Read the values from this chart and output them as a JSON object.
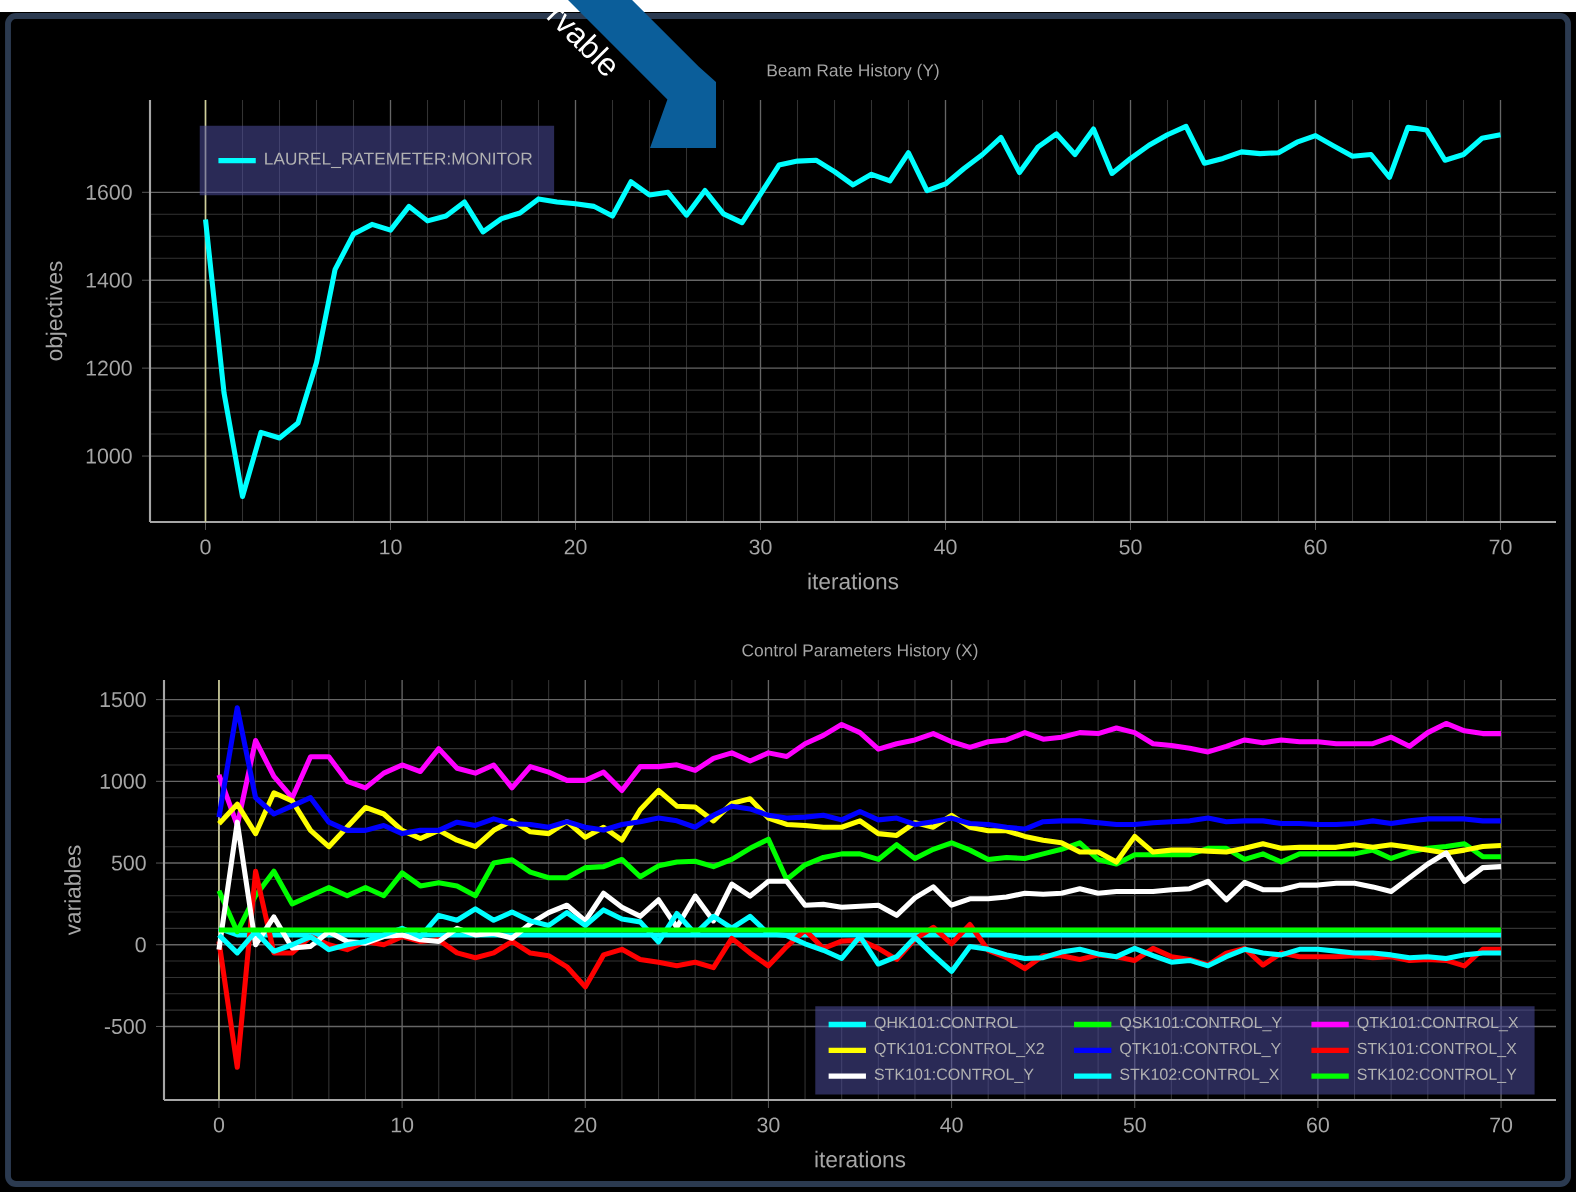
{
  "chart_data": [
    {
      "type": "line",
      "title": "Beam Rate History (Y)",
      "xlabel": "iterations",
      "ylabel": "objectives",
      "annotations": [
        "rvable"
      ],
      "x": [
        0,
        1,
        2,
        3,
        4,
        5,
        6,
        7,
        8,
        9,
        10,
        11,
        12,
        13,
        14,
        15,
        16,
        17,
        18,
        19,
        20,
        21,
        22,
        23,
        24,
        25,
        26,
        27,
        28,
        29,
        30,
        31,
        32,
        33,
        34,
        35,
        36,
        37,
        38,
        39,
        40,
        41,
        42,
        43,
        44,
        45,
        46,
        47,
        48,
        49,
        50,
        51,
        52,
        53,
        54,
        55,
        56,
        57,
        58,
        59,
        60,
        61,
        62,
        63,
        64,
        65,
        66,
        67,
        68,
        69,
        70
      ],
      "series": [
        {
          "name": "LAUREL_RATEMETER:MONITOR",
          "color": "#00ffff",
          "values": [
            1538,
            1144,
            908,
            1054,
            1041,
            1075,
            1213,
            1424,
            1505,
            1527,
            1514,
            1568,
            1535,
            1546,
            1578,
            1510,
            1540,
            1553,
            1585,
            1578,
            1574,
            1568,
            1546,
            1624,
            1594,
            1600,
            1548,
            1604,
            1551,
            1531,
            1596,
            1662,
            1671,
            1673,
            1647,
            1617,
            1641,
            1626,
            1690,
            1604,
            1619,
            1654,
            1686,
            1725,
            1645,
            1703,
            1733,
            1686,
            1744,
            1643,
            1677,
            1707,
            1731,
            1750,
            1666,
            1677,
            1692,
            1688,
            1690,
            1714,
            1729,
            1705,
            1682,
            1686,
            1634,
            1748,
            1742,
            1673,
            1686,
            1723,
            1731
          ]
        }
      ],
      "xlim": [
        -3,
        73
      ],
      "ylim": [
        850,
        1810
      ],
      "xticks": [
        0,
        10,
        20,
        30,
        40,
        50,
        60,
        70
      ],
      "yticks": [
        1000,
        1200,
        1400,
        1600
      ],
      "grid": true,
      "legend": "top left",
      "ref_lines": [
        {
          "axis": "x",
          "value": 0,
          "color": "#cfcf9a"
        }
      ]
    },
    {
      "type": "line",
      "title": "Control Parameters History (X)",
      "xlabel": "iterations",
      "ylabel": "variables",
      "x": [
        0,
        1,
        2,
        3,
        4,
        5,
        6,
        7,
        8,
        9,
        10,
        11,
        12,
        13,
        14,
        15,
        16,
        17,
        18,
        19,
        20,
        21,
        22,
        23,
        24,
        25,
        26,
        27,
        28,
        29,
        30,
        31,
        32,
        33,
        34,
        35,
        36,
        37,
        38,
        39,
        40,
        41,
        42,
        43,
        44,
        45,
        46,
        47,
        48,
        49,
        50,
        51,
        52,
        53,
        54,
        55,
        56,
        57,
        58,
        59,
        60,
        61,
        62,
        63,
        64,
        65,
        66,
        67,
        68,
        69,
        70
      ],
      "series": [
        {
          "name": "QHK101:CONTROL",
          "color": "#00ffff",
          "values": [
            100,
            60,
            60,
            60,
            60,
            60,
            60,
            60,
            60,
            60,
            60,
            60,
            60,
            60,
            60,
            60,
            60,
            60,
            60,
            60,
            60,
            60,
            60,
            60,
            60,
            60,
            60,
            60,
            60,
            60,
            60,
            60,
            60,
            60,
            60,
            60,
            60,
            60,
            60,
            60,
            60,
            60,
            60,
            60,
            60,
            60,
            60,
            60,
            60,
            60,
            60,
            60,
            60,
            60,
            60,
            60,
            60,
            60,
            60,
            60,
            60,
            60,
            60,
            60,
            60,
            60,
            60,
            60,
            60,
            60,
            60
          ]
        },
        {
          "name": "QSK101:CONTROL_Y",
          "color": "#00ff00",
          "values": [
            330,
            80,
            300,
            450,
            250,
            300,
            350,
            300,
            350,
            300,
            440,
            360,
            380,
            360,
            300,
            500,
            520,
            444,
            410,
            410,
            472,
            478,
            522,
            416,
            483,
            506,
            511,
            478,
            522,
            590,
            646,
            399,
            489,
            534,
            556,
            556,
            522,
            612,
            528,
            584,
            624,
            579,
            522,
            534,
            528,
            556,
            584,
            624,
            522,
            494,
            551,
            551,
            551,
            551,
            590,
            590,
            522,
            556,
            506,
            556,
            556,
            556,
            556,
            579,
            528,
            567,
            590,
            601,
            618,
            539,
            539
          ]
        },
        {
          "name": "QTK101:CONTROL_X",
          "color": "#ff00ff",
          "values": [
            1040,
            730,
            1250,
            1030,
            900,
            1150,
            1150,
            1000,
            960,
            1050,
            1100,
            1060,
            1200,
            1080,
            1050,
            1100,
            960,
            1090,
            1056,
            1006,
            1006,
            1056,
            944,
            1090,
            1090,
            1101,
            1067,
            1140,
            1174,
            1124,
            1174,
            1152,
            1230,
            1281,
            1348,
            1298,
            1197,
            1230,
            1253,
            1292,
            1242,
            1208,
            1242,
            1253,
            1298,
            1258,
            1270,
            1298,
            1292,
            1326,
            1298,
            1230,
            1219,
            1202,
            1180,
            1214,
            1253,
            1236,
            1253,
            1242,
            1242,
            1230,
            1230,
            1230,
            1270,
            1214,
            1298,
            1354,
            1309,
            1292,
            1292
          ]
        },
        {
          "name": "QTK101:CONTROL_X2",
          "color": "#ffff00",
          "values": [
            740,
            860,
            680,
            930,
            880,
            700,
            600,
            720,
            840,
            800,
            700,
            650,
            700,
            640,
            600,
            700,
            760,
            691,
            680,
            753,
            657,
            719,
            640,
            826,
            944,
            848,
            843,
            758,
            865,
            893,
            775,
            736,
            730,
            719,
            719,
            758,
            680,
            669,
            747,
            719,
            792,
            719,
            697,
            697,
            663,
            640,
            624,
            567,
            567,
            506,
            663,
            567,
            579,
            579,
            573,
            567,
            590,
            618,
            590,
            596,
            596,
            596,
            612,
            596,
            612,
            596,
            579,
            562,
            579,
            601,
            607
          ]
        },
        {
          "name": "QTK101:CONTROL_Y",
          "color": "#0000ff",
          "values": [
            780,
            1450,
            900,
            800,
            850,
            900,
            750,
            700,
            700,
            730,
            680,
            700,
            700,
            750,
            730,
            770,
            740,
            736,
            719,
            753,
            719,
            702,
            736,
            753,
            775,
            758,
            719,
            792,
            848,
            831,
            792,
            775,
            781,
            792,
            764,
            815,
            764,
            775,
            736,
            753,
            775,
            742,
            736,
            719,
            708,
            753,
            758,
            758,
            747,
            736,
            736,
            747,
            753,
            758,
            775,
            753,
            758,
            758,
            742,
            742,
            736,
            736,
            742,
            758,
            742,
            758,
            770,
            770,
            770,
            758,
            758
          ]
        },
        {
          "name": "STK101:CONTROL_X",
          "color": "#ff0000",
          "values": [
            20,
            -750,
            450,
            -50,
            -50,
            50,
            0,
            -30,
            20,
            0,
            50,
            20,
            30,
            -50,
            -80,
            -50,
            20,
            -51,
            -67,
            -135,
            -258,
            -62,
            -28,
            -90,
            -107,
            -129,
            -107,
            -140,
            39,
            -51,
            -129,
            -11,
            90,
            -22,
            22,
            28,
            -22,
            -90,
            34,
            107,
            6,
            124,
            -34,
            -79,
            -146,
            -67,
            -67,
            -90,
            -62,
            -73,
            -96,
            -22,
            -73,
            -90,
            -124,
            -51,
            -22,
            -124,
            -51,
            -73,
            -73,
            -73,
            -67,
            -79,
            -73,
            -96,
            -90,
            -96,
            -129,
            -28,
            -28
          ]
        },
        {
          "name": "STK101:CONTROL_Y",
          "color": "#ffffff",
          "values": [
            -30,
            750,
            0,
            170,
            -20,
            -10,
            80,
            20,
            10,
            50,
            60,
            30,
            20,
            100,
            60,
            70,
            40,
            129,
            197,
            242,
            146,
            315,
            230,
            174,
            275,
            107,
            298,
            146,
            371,
            298,
            388,
            388,
            242,
            247,
            230,
            236,
            242,
            180,
            287,
            354,
            242,
            281,
            281,
            292,
            315,
            309,
            315,
            343,
            315,
            326,
            326,
            326,
            337,
            343,
            388,
            275,
            382,
            337,
            337,
            365,
            365,
            376,
            376,
            354,
            326,
            410,
            494,
            562,
            388,
            472,
            478
          ]
        },
        {
          "name": "STK102:CONTROL_X",
          "color": "#00ffff",
          "values": [
            60,
            -50,
            80,
            -40,
            0,
            50,
            -30,
            0,
            20,
            60,
            100,
            50,
            180,
            150,
            220,
            150,
            200,
            146,
            118,
            197,
            118,
            213,
            157,
            140,
            17,
            191,
            67,
            174,
            101,
            174,
            67,
            56,
            6,
            -34,
            -84,
            51,
            -118,
            -73,
            45,
            -62,
            -163,
            -11,
            -28,
            -62,
            -84,
            -79,
            -45,
            -28,
            -56,
            -73,
            -22,
            -67,
            -107,
            -96,
            -129,
            -73,
            -28,
            -51,
            -62,
            -28,
            -28,
            -39,
            -51,
            -51,
            -62,
            -79,
            -73,
            -84,
            -62,
            -51,
            -51
          ]
        },
        {
          "name": "STK102:CONTROL_Y",
          "color": "#00ff00",
          "values": [
            90,
            90,
            90,
            90,
            90,
            90,
            90,
            90,
            90,
            90,
            90,
            90,
            90,
            90,
            90,
            90,
            90,
            90,
            90,
            90,
            90,
            90,
            90,
            90,
            90,
            90,
            90,
            90,
            90,
            90,
            90,
            90,
            90,
            90,
            90,
            90,
            90,
            90,
            90,
            90,
            90,
            90,
            90,
            90,
            90,
            90,
            90,
            90,
            90,
            90,
            90,
            90,
            90,
            90,
            90,
            90,
            90,
            90,
            90,
            90,
            90,
            90,
            90,
            90,
            90,
            90,
            90,
            90,
            90,
            90,
            90
          ]
        }
      ],
      "xlim": [
        -3,
        73
      ],
      "ylim": [
        -950,
        1620
      ],
      "xticks": [
        0,
        10,
        20,
        30,
        40,
        50,
        60,
        70
      ],
      "yticks": [
        -500,
        0,
        500,
        1000,
        1500
      ],
      "grid": true,
      "legend": "bottom right",
      "ref_lines": [
        {
          "axis": "x",
          "value": 0,
          "color": "#cfcf9a"
        }
      ]
    }
  ]
}
